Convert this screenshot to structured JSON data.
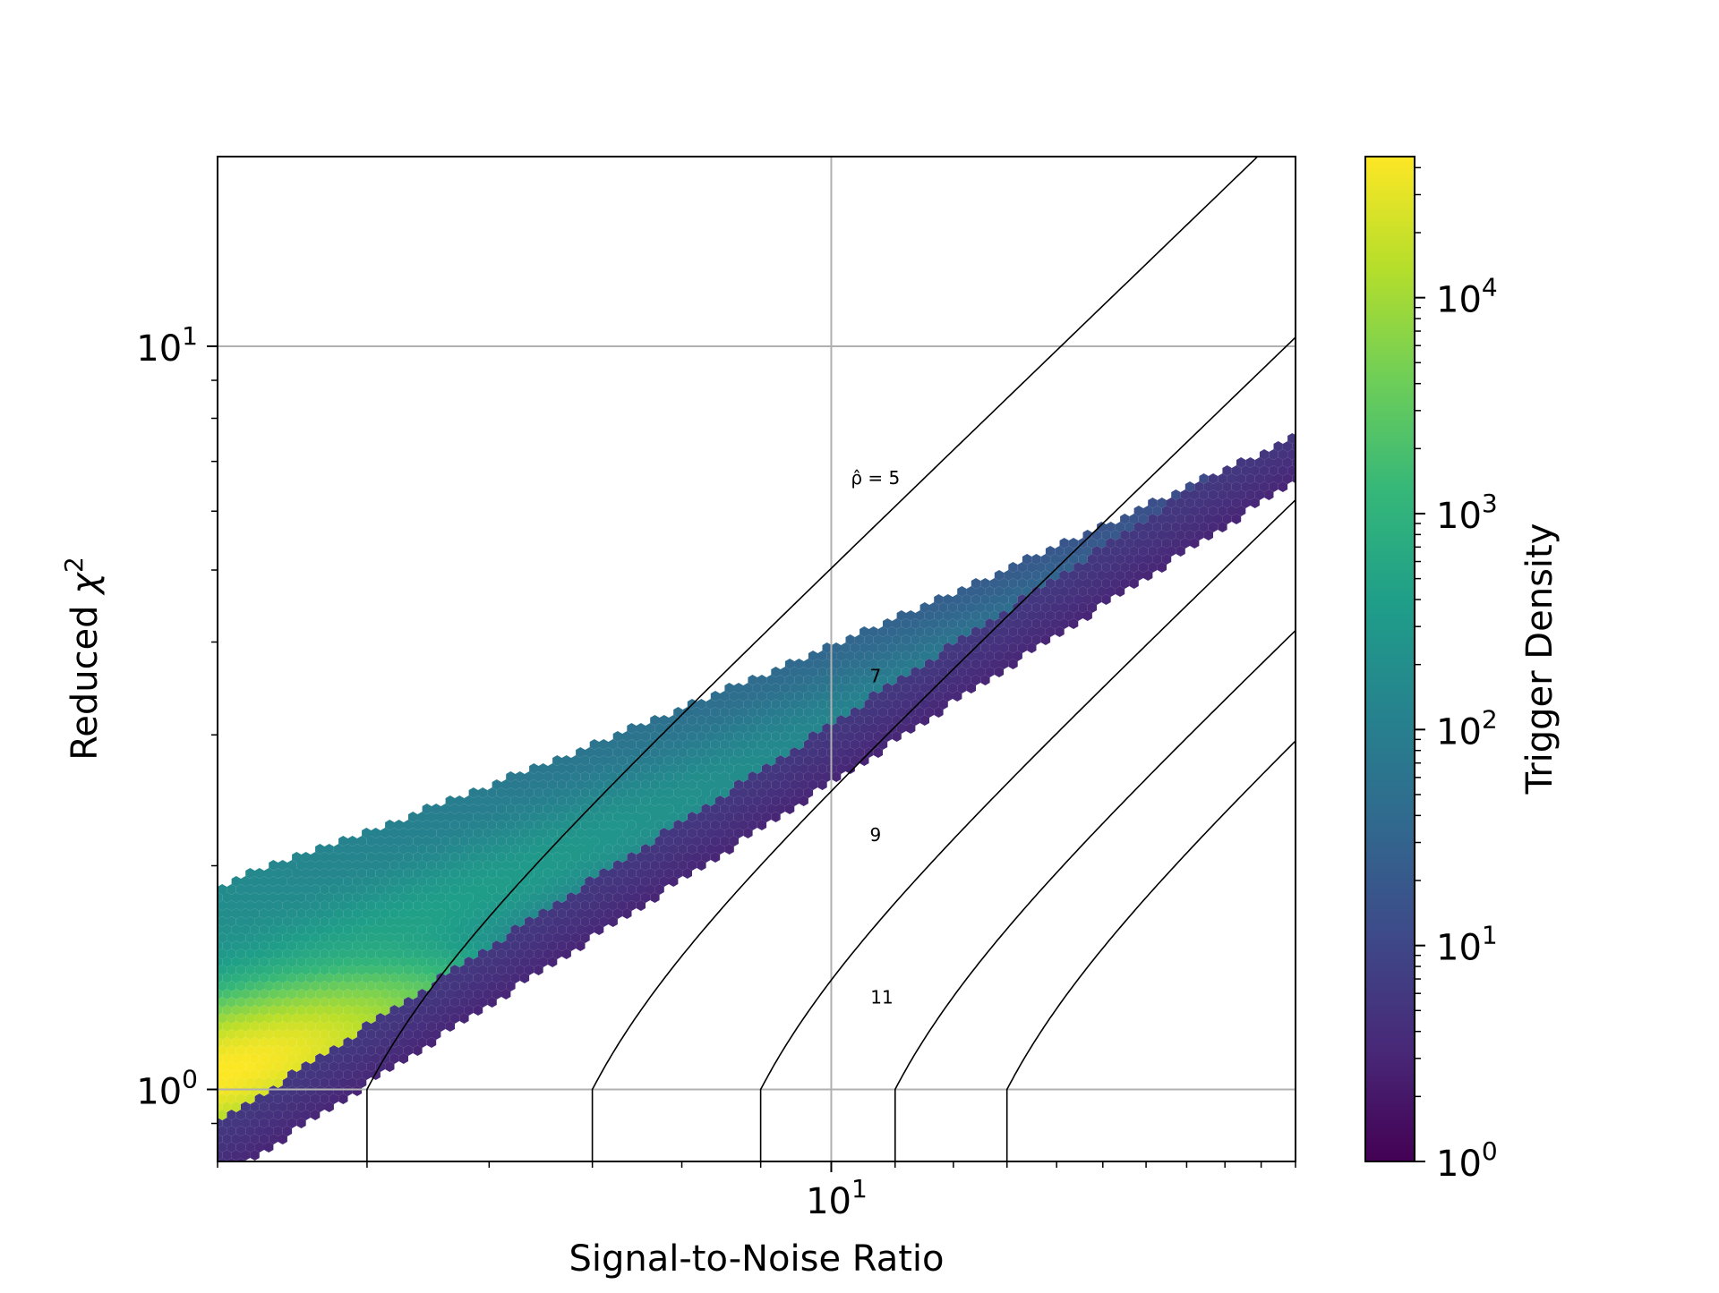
{
  "chart_data": {
    "type": "heatmap",
    "subtype": "hexbin density with contour lines",
    "title": "",
    "xlabel": "Signal-to-Noise Ratio",
    "ylabel_prefix": "Reduced ",
    "ylabel_symbol": "χ",
    "ylabel_sup": "2",
    "x_scale": "log",
    "y_scale": "log",
    "xlim": [
      4,
      20
    ],
    "ylim": [
      0.8,
      18
    ],
    "x_ticks": [
      {
        "value": 10,
        "base": "10",
        "exp": "1"
      }
    ],
    "y_ticks": [
      {
        "value": 1,
        "base": "10",
        "exp": "0"
      },
      {
        "value": 10,
        "base": "10",
        "exp": "1"
      }
    ],
    "grid": true,
    "colorbar": {
      "label": "Trigger Density",
      "scale": "log",
      "range": [
        1,
        45000
      ],
      "colormap": "viridis",
      "ticks": [
        {
          "value": 1,
          "base": "10",
          "exp": "0"
        },
        {
          "value": 10,
          "base": "10",
          "exp": "1"
        },
        {
          "value": 100,
          "base": "10",
          "exp": "2"
        },
        {
          "value": 1000,
          "base": "10",
          "exp": "3"
        },
        {
          "value": 10000,
          "base": "10",
          "exp": "4"
        }
      ]
    },
    "contours": [
      {
        "label": "ρ̂ = 5",
        "rho": 5,
        "label_snr": 10.4,
        "label_chi": 6.65
      },
      {
        "label": "7",
        "rho": 7,
        "label_snr": 10.4,
        "label_chi": 3.6
      },
      {
        "label": "9",
        "rho": 9,
        "label_snr": 10.4,
        "label_chi": 2.2
      },
      {
        "label": "11",
        "rho": 11,
        "label_snr": 10.5,
        "label_chi": 1.33
      }
    ],
    "extra_contour_rho": [
      13
    ],
    "density_model": {
      "upper_edge": "chi ≈ 0.3*snr^1.05 + 0.6 (approx.)",
      "lower_edge": "chi ≈ 0.82 at snr 4, widening toward higher SNR",
      "peak_region": {
        "snr": 4.0,
        "chi": 1.05,
        "density": 45000
      }
    }
  },
  "colors": {
    "viridis": [
      "#440154",
      "#482878",
      "#3e4989",
      "#31688e",
      "#26828e",
      "#1f9e89",
      "#35b779",
      "#6ece58",
      "#b5de2b",
      "#fde725"
    ],
    "grid": "#b0b0b0",
    "contour": "#000000",
    "axes": "#000000"
  }
}
